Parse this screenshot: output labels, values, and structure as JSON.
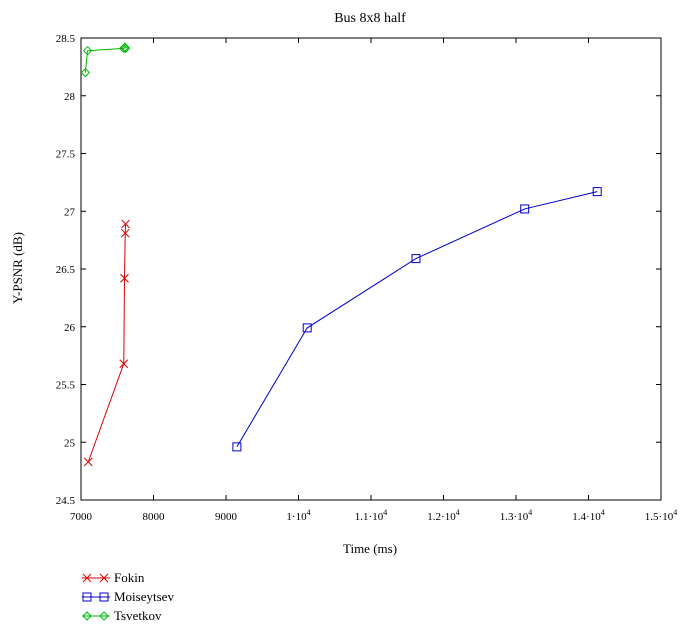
{
  "chart_data": {
    "type": "line",
    "title": "Bus 8x8 half",
    "xlabel": "Time (ms)",
    "ylabel": "Y-PSNR (dB)",
    "xlim": [
      7000,
      15000
    ],
    "ylim": [
      24.5,
      28.5
    ],
    "x_ticks": [
      7000,
      8000,
      9000,
      10000,
      11000,
      12000,
      13000,
      14000,
      15000
    ],
    "x_tick_labels": [
      {
        "text": "7000"
      },
      {
        "text": "8000"
      },
      {
        "text": "9000"
      },
      {
        "mant": "1",
        "exp": "4"
      },
      {
        "mant": "1.1",
        "exp": "4"
      },
      {
        "mant": "1.2",
        "exp": "4"
      },
      {
        "mant": "1.3",
        "exp": "4"
      },
      {
        "mant": "1.4",
        "exp": "4"
      },
      {
        "mant": "1.5",
        "exp": "4"
      }
    ],
    "y_ticks": [
      24.5,
      25,
      25.5,
      26,
      26.5,
      27,
      27.5,
      28,
      28.5
    ],
    "y_tick_labels": [
      "24.5",
      "25",
      "25.5",
      "26",
      "26.5",
      "27",
      "27.5",
      "28",
      "28.5"
    ],
    "legend_position": "bottom-left",
    "series": [
      {
        "name": "Fokin",
        "color": "#dd0000",
        "marker": "x",
        "x": [
          7100,
          7590,
          7600,
          7610,
          7615
        ],
        "y": [
          24.83,
          25.68,
          26.42,
          26.81,
          26.89
        ]
      },
      {
        "name": "Moiseytsev",
        "color": "#0000cc",
        "marker": "square",
        "x": [
          9150,
          10120,
          11620,
          13120,
          14120
        ],
        "y": [
          24.96,
          25.99,
          26.59,
          27.02,
          27.17
        ]
      },
      {
        "name": "Tsvetkov",
        "color": "#00bb00",
        "marker": "diamond",
        "x": [
          7060,
          7090,
          7590,
          7605,
          7615
        ],
        "y": [
          28.2,
          28.39,
          28.41,
          28.42,
          28.41
        ]
      }
    ]
  }
}
